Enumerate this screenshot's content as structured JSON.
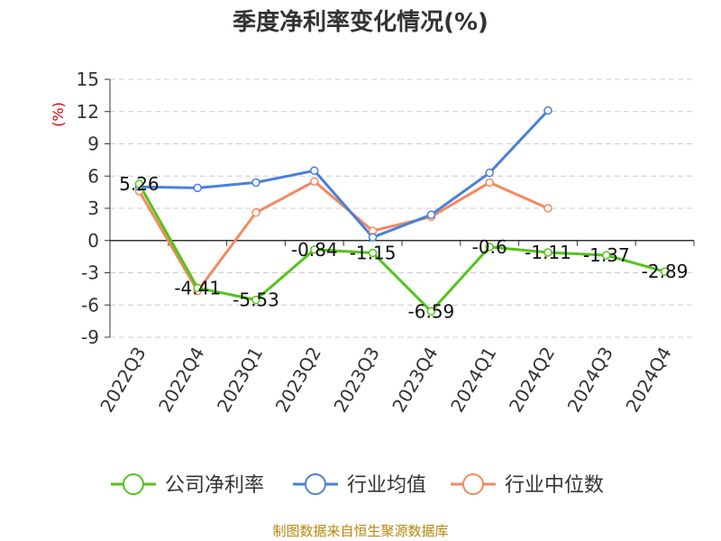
{
  "chart_data": {
    "type": "line",
    "title": "季度净利率变化情况(%)",
    "ylabel": "(%)",
    "ylim": [
      -9,
      15
    ],
    "yticks": [
      15,
      12,
      9,
      6,
      3,
      0,
      -3,
      -6,
      -9
    ],
    "grid": true,
    "legend_position": "bottom",
    "categories": [
      "2022Q3",
      "2022Q4",
      "2023Q1",
      "2023Q2",
      "2023Q3",
      "2023Q4",
      "2024Q1",
      "2024Q2",
      "2024Q3",
      "2024Q4"
    ],
    "series": [
      {
        "name": "公司净利率",
        "color": "#52c41a",
        "values": [
          5.26,
          -4.41,
          -5.53,
          -0.84,
          -1.15,
          -6.59,
          -0.6,
          -1.11,
          -1.37,
          -2.89
        ],
        "labels": [
          "5.26",
          "-4.41",
          "-5.53",
          "-0.84",
          "-1.15",
          "-6.59",
          "-0.6",
          "-1.11",
          "-1.37",
          "-2.89"
        ]
      },
      {
        "name": "行业均值",
        "color": "#4a7fdb",
        "values": [
          5.0,
          4.9,
          5.4,
          6.5,
          0.3,
          2.4,
          6.3,
          12.1,
          null,
          null
        ]
      },
      {
        "name": "行业中位数",
        "color": "#f4895f",
        "values": [
          4.6,
          -4.7,
          2.6,
          5.5,
          0.9,
          2.2,
          5.4,
          3.0,
          null,
          null
        ]
      }
    ],
    "source": "制图数据来自恒生聚源数据库"
  }
}
